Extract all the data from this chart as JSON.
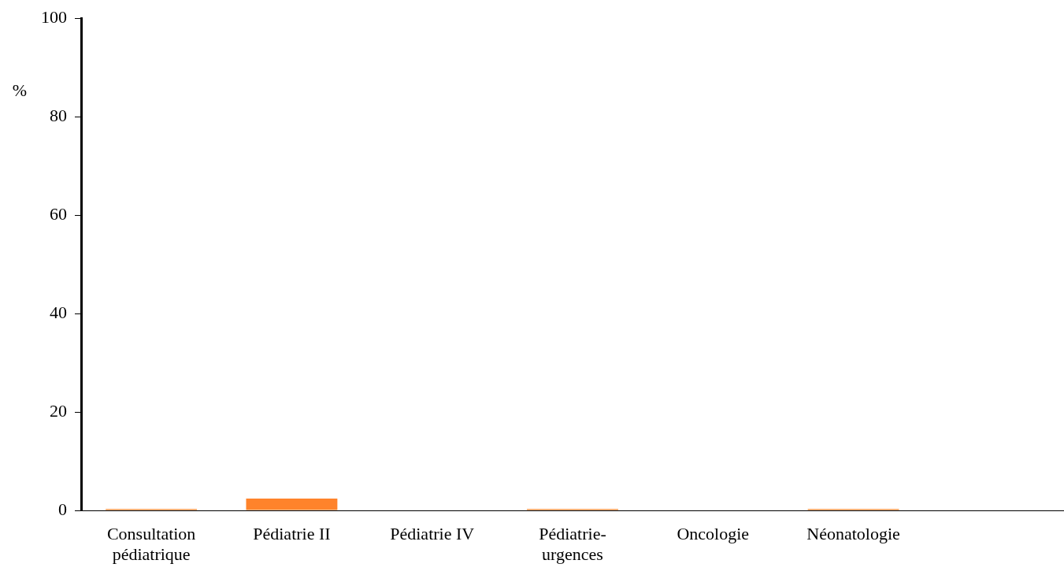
{
  "chart_data": {
    "type": "bar",
    "ylabel": "%",
    "categories": [
      "Consultation\npédiatrique",
      "Pédiatrie II",
      "Pédiatrie IV",
      "Pédiatrie-\nurgences",
      "Oncologie",
      "Néonatologie",
      null
    ],
    "values": [
      0.3,
      2.4,
      0,
      0.3,
      0,
      0.3,
      null
    ],
    "color": "#ff832b",
    "ylim": [
      0,
      100
    ],
    "yticks": [
      0,
      20,
      40,
      60,
      80,
      100
    ],
    "grid": false,
    "legend": false
  }
}
